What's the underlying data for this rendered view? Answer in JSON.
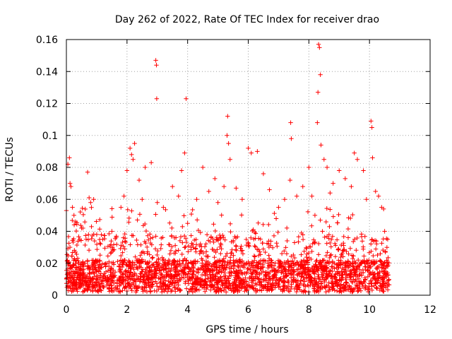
{
  "chart_data": {
    "type": "scatter",
    "title": "Day 262 of 2022, Rate Of TEC Index for receiver drao",
    "xlabel": "GPS time / hours",
    "ylabel": "ROTI / TECUs",
    "xlim": [
      0,
      12
    ],
    "ylim": [
      0,
      0.16
    ],
    "x_ticks": [
      0,
      2,
      4,
      6,
      8,
      10,
      12
    ],
    "x_tick_labels": [
      "0",
      "2",
      "4",
      "6",
      "8",
      "10",
      "12"
    ],
    "y_ticks": [
      0,
      0.02,
      0.04,
      0.06,
      0.08,
      0.1,
      0.12,
      0.14,
      0.16
    ],
    "y_tick_labels": [
      "0",
      "0.02",
      "0.04",
      "0.06",
      "0.08",
      "0.1",
      "0.12",
      "0.14",
      "0.16"
    ],
    "grid": true,
    "marker": "+",
    "color": "#ff0000",
    "series": [
      {
        "name": "ROTI",
        "points": [
          [
            0.0,
            0.053
          ],
          [
            0.05,
            0.082
          ],
          [
            0.1,
            0.086
          ],
          [
            0.12,
            0.07
          ],
          [
            0.15,
            0.068
          ],
          [
            0.2,
            0.055
          ],
          [
            0.25,
            0.05
          ],
          [
            0.3,
            0.046
          ],
          [
            0.5,
            0.042
          ],
          [
            0.7,
            0.077
          ],
          [
            0.75,
            0.061
          ],
          [
            0.8,
            0.058
          ],
          [
            0.9,
            0.06
          ],
          [
            1.0,
            0.038
          ],
          [
            1.2,
            0.035
          ],
          [
            1.5,
            0.04
          ],
          [
            1.8,
            0.055
          ],
          [
            1.9,
            0.062
          ],
          [
            2.0,
            0.078
          ],
          [
            2.1,
            0.092
          ],
          [
            2.15,
            0.088
          ],
          [
            2.2,
            0.085
          ],
          [
            2.25,
            0.095
          ],
          [
            2.4,
            0.072
          ],
          [
            2.5,
            0.06
          ],
          [
            2.6,
            0.08
          ],
          [
            2.8,
            0.083
          ],
          [
            2.95,
            0.147
          ],
          [
            2.97,
            0.144
          ],
          [
            2.98,
            0.123
          ],
          [
            3.0,
            0.058
          ],
          [
            3.2,
            0.055
          ],
          [
            3.5,
            0.068
          ],
          [
            3.7,
            0.062
          ],
          [
            3.8,
            0.078
          ],
          [
            3.9,
            0.089
          ],
          [
            3.95,
            0.123
          ],
          [
            4.0,
            0.045
          ],
          [
            4.3,
            0.06
          ],
          [
            4.5,
            0.08
          ],
          [
            4.7,
            0.065
          ],
          [
            4.9,
            0.073
          ],
          [
            5.0,
            0.058
          ],
          [
            5.2,
            0.068
          ],
          [
            5.3,
            0.1
          ],
          [
            5.32,
            0.112
          ],
          [
            5.35,
            0.095
          ],
          [
            5.4,
            0.085
          ],
          [
            5.6,
            0.067
          ],
          [
            5.8,
            0.06
          ],
          [
            6.0,
            0.092
          ],
          [
            6.1,
            0.089
          ],
          [
            6.3,
            0.09
          ],
          [
            6.5,
            0.076
          ],
          [
            6.7,
            0.066
          ],
          [
            7.0,
            0.055
          ],
          [
            7.2,
            0.06
          ],
          [
            7.38,
            0.072
          ],
          [
            7.4,
            0.108
          ],
          [
            7.42,
            0.098
          ],
          [
            7.6,
            0.062
          ],
          [
            7.8,
            0.068
          ],
          [
            8.0,
            0.08
          ],
          [
            8.1,
            0.062
          ],
          [
            8.2,
            0.05
          ],
          [
            8.28,
            0.108
          ],
          [
            8.3,
            0.127
          ],
          [
            8.32,
            0.157
          ],
          [
            8.35,
            0.155
          ],
          [
            8.38,
            0.138
          ],
          [
            8.4,
            0.094
          ],
          [
            8.5,
            0.085
          ],
          [
            8.6,
            0.08
          ],
          [
            8.7,
            0.064
          ],
          [
            8.8,
            0.07
          ],
          [
            9.0,
            0.078
          ],
          [
            9.2,
            0.073
          ],
          [
            9.4,
            0.068
          ],
          [
            9.5,
            0.089
          ],
          [
            9.6,
            0.085
          ],
          [
            9.8,
            0.078
          ],
          [
            9.9,
            0.06
          ],
          [
            10.05,
            0.109
          ],
          [
            10.08,
            0.105
          ],
          [
            10.1,
            0.086
          ],
          [
            10.2,
            0.065
          ],
          [
            10.3,
            0.062
          ],
          [
            10.4,
            0.055
          ],
          [
            10.5,
            0.04
          ],
          [
            10.6,
            0.035
          ]
        ]
      }
    ]
  }
}
